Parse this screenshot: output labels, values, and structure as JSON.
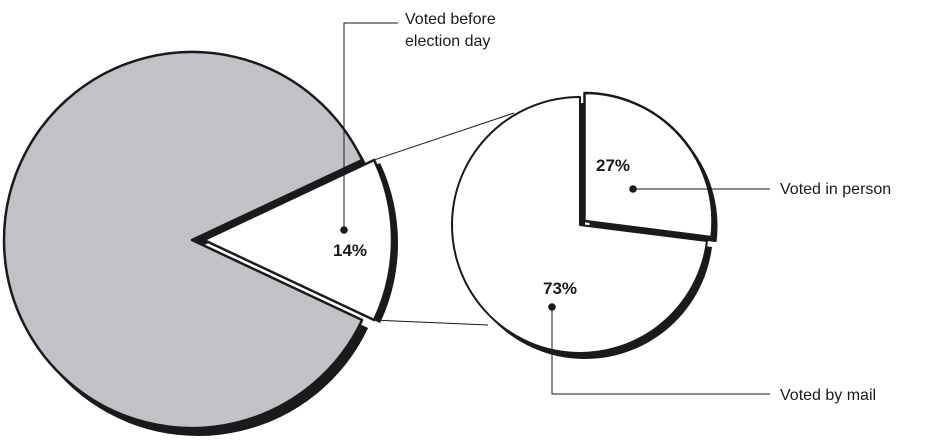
{
  "chart_data": {
    "type": "pie",
    "main_pie": {
      "slices": [
        {
          "label": "",
          "value": 86,
          "color": "#c0c2c8"
        },
        {
          "label": "Voted before election day",
          "value": 14,
          "value_label": "14%",
          "color": "#ffffff",
          "exploded": true
        }
      ]
    },
    "breakdown_pie": {
      "of": "Voted before election day",
      "slices": [
        {
          "label": "Voted in person",
          "value": 27,
          "value_label": "27%",
          "color": "#ffffff",
          "exploded": true
        },
        {
          "label": "Voted by mail",
          "value": 73,
          "value_label": "73%",
          "color": "#ffffff"
        }
      ]
    },
    "outline_color": "#1a1a1a",
    "shadow_color": "#1a1a1a"
  }
}
